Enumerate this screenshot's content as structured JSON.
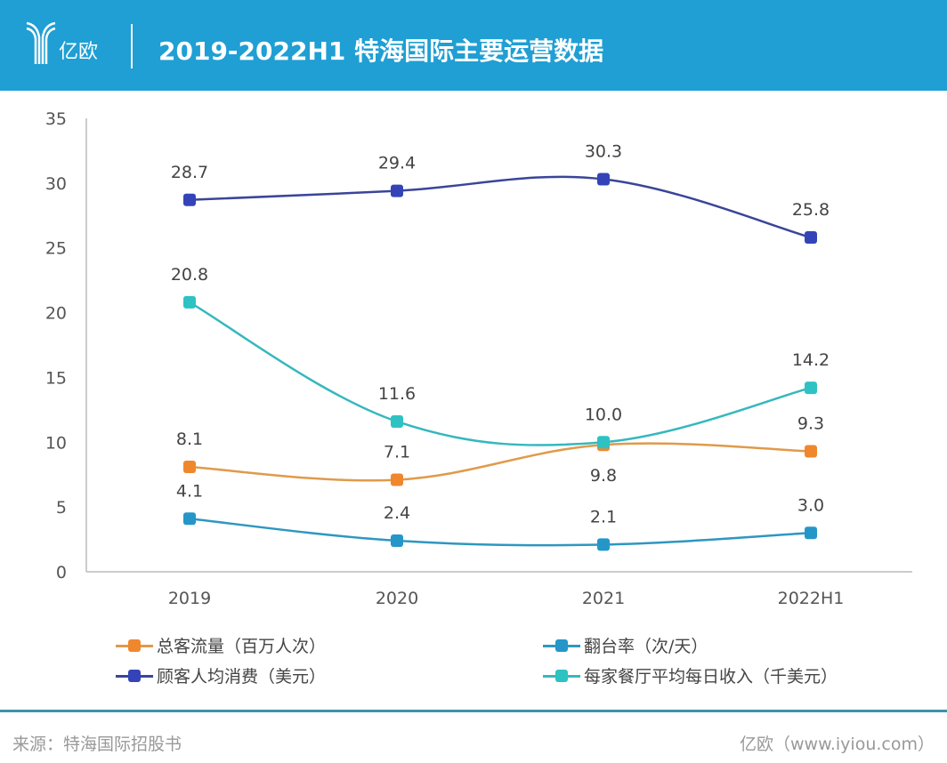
{
  "header": {
    "logo_text": "亿欧",
    "title": "2019-2022H1 特海国际主要运营数据",
    "color": "#1f9fd4"
  },
  "chart_data": {
    "type": "line",
    "title": "2019-2022H1 特海国际主要运营数据",
    "categories": [
      "2019",
      "2020",
      "2021",
      "2022H1"
    ],
    "ylim": [
      0,
      35
    ],
    "yticks": [
      0,
      5,
      10,
      15,
      20,
      25,
      30,
      35
    ],
    "grid": false,
    "legend_placement": "bottom",
    "series": [
      {
        "name": "总客流量（百万人次）",
        "values": [
          8.1,
          7.1,
          9.8,
          9.3
        ],
        "labels": [
          "8.1",
          "7.1",
          "9.8",
          "9.3"
        ],
        "color": "#f0872c",
        "line_color": "#e09a4a"
      },
      {
        "name": "翻台率（次/天）",
        "values": [
          4.1,
          2.4,
          2.1,
          3.0
        ],
        "labels": [
          "4.1",
          "2.4",
          "2.1",
          "3.0"
        ],
        "color": "#2596c8",
        "line_color": "#2e97c0"
      },
      {
        "name": "顾客人均消费（美元）",
        "values": [
          28.7,
          29.4,
          30.3,
          25.8
        ],
        "labels": [
          "28.7",
          "29.4",
          "30.3",
          "25.8"
        ],
        "color": "#3444b8",
        "line_color": "#3a4599"
      },
      {
        "name": "每家餐厅平均每日收入（千美元）",
        "values": [
          20.8,
          11.6,
          10.0,
          14.2
        ],
        "labels": [
          "20.8",
          "11.6",
          "10.0",
          "14.2"
        ],
        "color": "#2ec2c2",
        "line_color": "#36b8bd"
      }
    ]
  },
  "footer": {
    "source": "来源：特海国际招股书",
    "credit": "亿欧（www.iyiou.com）"
  }
}
